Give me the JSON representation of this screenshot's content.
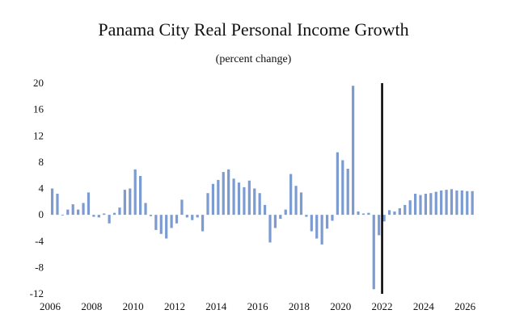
{
  "chart_data": {
    "type": "bar",
    "title": "Panama City Real Personal Income Growth",
    "subtitle": "(percent change)",
    "xlabel": "",
    "ylabel": "",
    "ylim": [
      -12,
      20
    ],
    "yticks": [
      20,
      16,
      12,
      8,
      4,
      0,
      -4,
      -8,
      -12
    ],
    "xlim": [
      2006,
      2026.5
    ],
    "xticks": [
      2006,
      2008,
      2010,
      2012,
      2014,
      2016,
      2018,
      2020,
      2022,
      2024,
      2026
    ],
    "divider_x": 2022.0,
    "bar_color": "#7b9bd1",
    "divider_color": "#000000",
    "series": [
      {
        "name": "Real Personal Income Growth",
        "x": [
          2006.1,
          2006.35,
          2006.6,
          2006.85,
          2007.1,
          2007.35,
          2007.6,
          2007.85,
          2008.1,
          2008.35,
          2008.6,
          2008.85,
          2009.1,
          2009.35,
          2009.6,
          2009.85,
          2010.1,
          2010.35,
          2010.6,
          2010.85,
          2011.1,
          2011.35,
          2011.6,
          2011.85,
          2012.1,
          2012.35,
          2012.6,
          2012.85,
          2013.1,
          2013.35,
          2013.6,
          2013.85,
          2014.1,
          2014.35,
          2014.6,
          2014.85,
          2015.1,
          2015.35,
          2015.6,
          2015.85,
          2016.1,
          2016.35,
          2016.6,
          2016.85,
          2017.1,
          2017.35,
          2017.6,
          2017.85,
          2018.1,
          2018.35,
          2018.6,
          2018.85,
          2019.1,
          2019.35,
          2019.6,
          2019.85,
          2020.1,
          2020.35,
          2020.6,
          2020.85,
          2021.1,
          2021.35,
          2021.6,
          2021.85,
          2022.1,
          2022.35,
          2022.6,
          2022.85,
          2023.1,
          2023.35,
          2023.6,
          2023.85,
          2024.1,
          2024.35,
          2024.6,
          2024.85,
          2025.1,
          2025.35,
          2025.6,
          2025.85,
          2026.1,
          2026.35
        ],
        "values": [
          4.0,
          3.2,
          0.0,
          0.8,
          1.6,
          0.8,
          1.8,
          3.4,
          -0.3,
          -0.4,
          0.2,
          -1.3,
          0.3,
          1.1,
          3.8,
          4.0,
          6.9,
          5.9,
          1.8,
          -0.2,
          -2.3,
          -2.9,
          -3.6,
          -2.0,
          -1.3,
          2.3,
          -0.4,
          -0.8,
          -0.4,
          -2.5,
          3.3,
          4.7,
          5.3,
          6.5,
          6.9,
          5.5,
          4.9,
          4.2,
          5.2,
          4.0,
          3.3,
          1.5,
          -4.2,
          -2.0,
          -0.6,
          0.8,
          6.2,
          4.4,
          3.4,
          -0.3,
          -2.5,
          -3.6,
          -4.5,
          -2.1,
          -0.9,
          9.5,
          8.3,
          7.0,
          19.6,
          0.5,
          0.2,
          0.3,
          -11.3,
          -3.1,
          -1.0,
          0.7,
          0.5,
          1.0,
          1.5,
          2.2,
          3.2,
          3.0,
          3.2,
          3.3,
          3.5,
          3.7,
          3.8,
          3.9,
          3.7,
          3.7,
          3.6,
          3.6
        ]
      }
    ]
  }
}
